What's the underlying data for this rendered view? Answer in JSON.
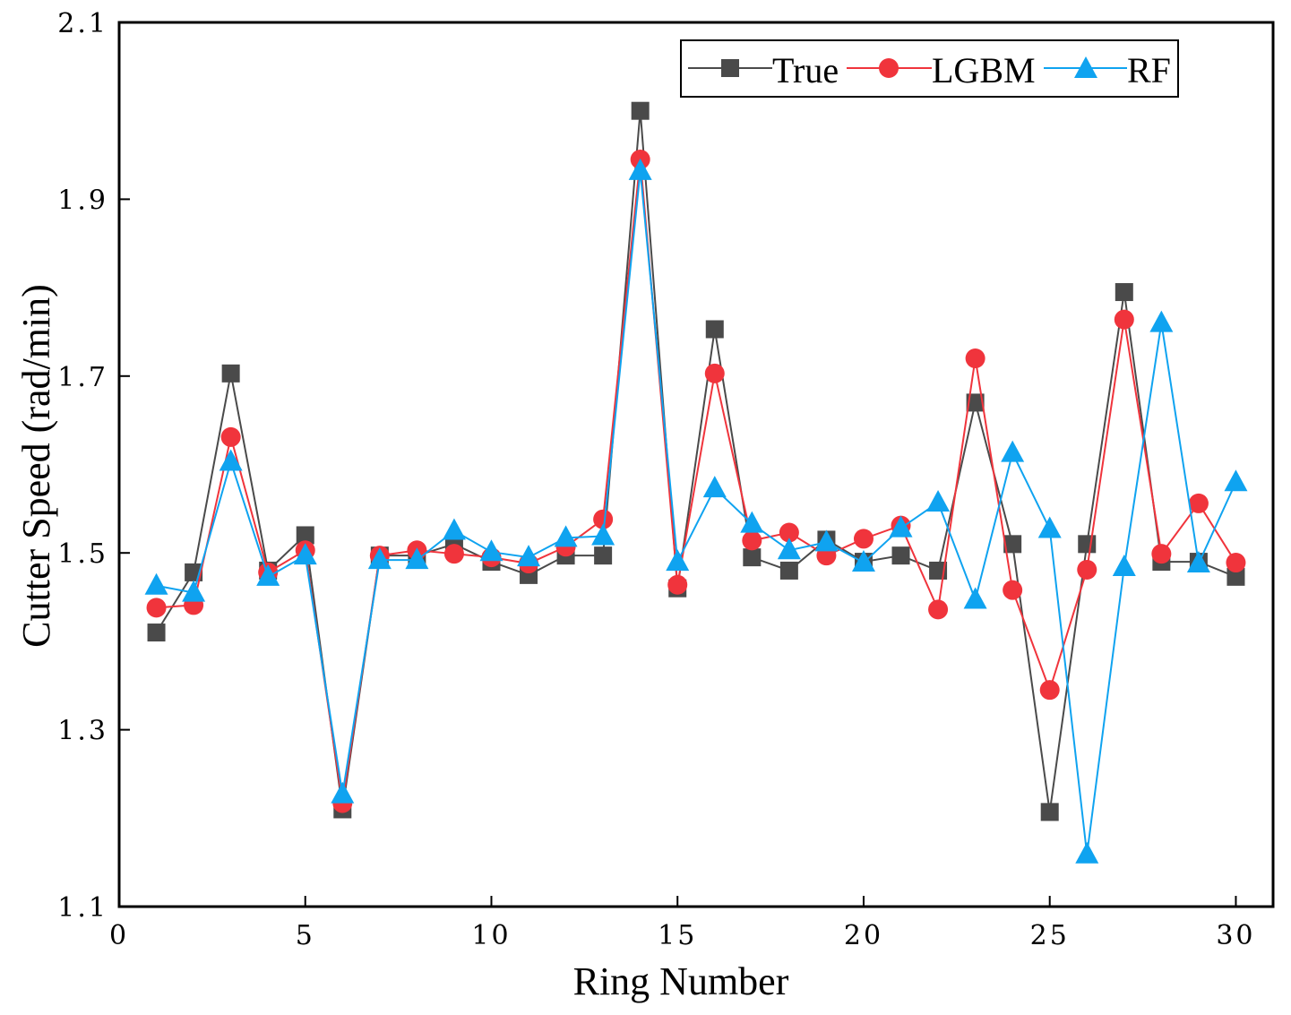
{
  "chart_data": {
    "type": "line",
    "xlabel": "Ring Number",
    "ylabel": "Cutter Speed (rad/min)",
    "xlim": [
      0,
      31
    ],
    "ylim": [
      1.1,
      2.1
    ],
    "xticks": [
      0,
      5,
      10,
      15,
      20,
      25,
      30
    ],
    "yticks": [
      1.1,
      1.3,
      1.5,
      1.7,
      1.9,
      2.1
    ],
    "xtick_labels": [
      "0",
      "5",
      "10",
      "15",
      "20",
      "25",
      "30"
    ],
    "ytick_labels": [
      "1.1",
      "1.3",
      "1.5",
      "1.7",
      "1.9",
      "2.1"
    ],
    "legend_position": "top-right",
    "grid": false,
    "x": [
      1,
      2,
      3,
      4,
      5,
      6,
      7,
      8,
      9,
      10,
      11,
      12,
      13,
      14,
      15,
      16,
      17,
      18,
      19,
      20,
      21,
      22,
      23,
      24,
      25,
      26,
      27,
      28,
      29,
      30
    ],
    "series": [
      {
        "name": "True",
        "color": "#4a4a4a",
        "marker": "square",
        "values": [
          1.41,
          1.478,
          1.703,
          1.48,
          1.52,
          1.21,
          1.497,
          1.497,
          1.51,
          1.49,
          1.475,
          1.497,
          1.497,
          2.0,
          1.46,
          1.753,
          1.495,
          1.48,
          1.515,
          1.49,
          1.497,
          1.48,
          1.67,
          1.51,
          1.207,
          1.51,
          1.795,
          1.49,
          1.49,
          1.473
        ]
      },
      {
        "name": "LGBM",
        "color": "#f0343c",
        "marker": "circle",
        "values": [
          1.438,
          1.441,
          1.631,
          1.478,
          1.503,
          1.217,
          1.497,
          1.503,
          1.499,
          1.495,
          1.488,
          1.507,
          1.538,
          1.945,
          1.464,
          1.703,
          1.514,
          1.523,
          1.497,
          1.516,
          1.531,
          1.436,
          1.72,
          1.458,
          1.345,
          1.481,
          1.764,
          1.499,
          1.556,
          1.489
        ]
      },
      {
        "name": "RF",
        "color": "#0fa3f0",
        "marker": "triangle",
        "values": [
          1.463,
          1.455,
          1.603,
          1.473,
          1.497,
          1.227,
          1.492,
          1.492,
          1.525,
          1.501,
          1.495,
          1.517,
          1.519,
          1.932,
          1.49,
          1.573,
          1.533,
          1.503,
          1.512,
          1.489,
          1.528,
          1.557,
          1.447,
          1.613,
          1.527,
          1.159,
          1.484,
          1.76,
          1.488,
          1.58
        ]
      }
    ]
  }
}
